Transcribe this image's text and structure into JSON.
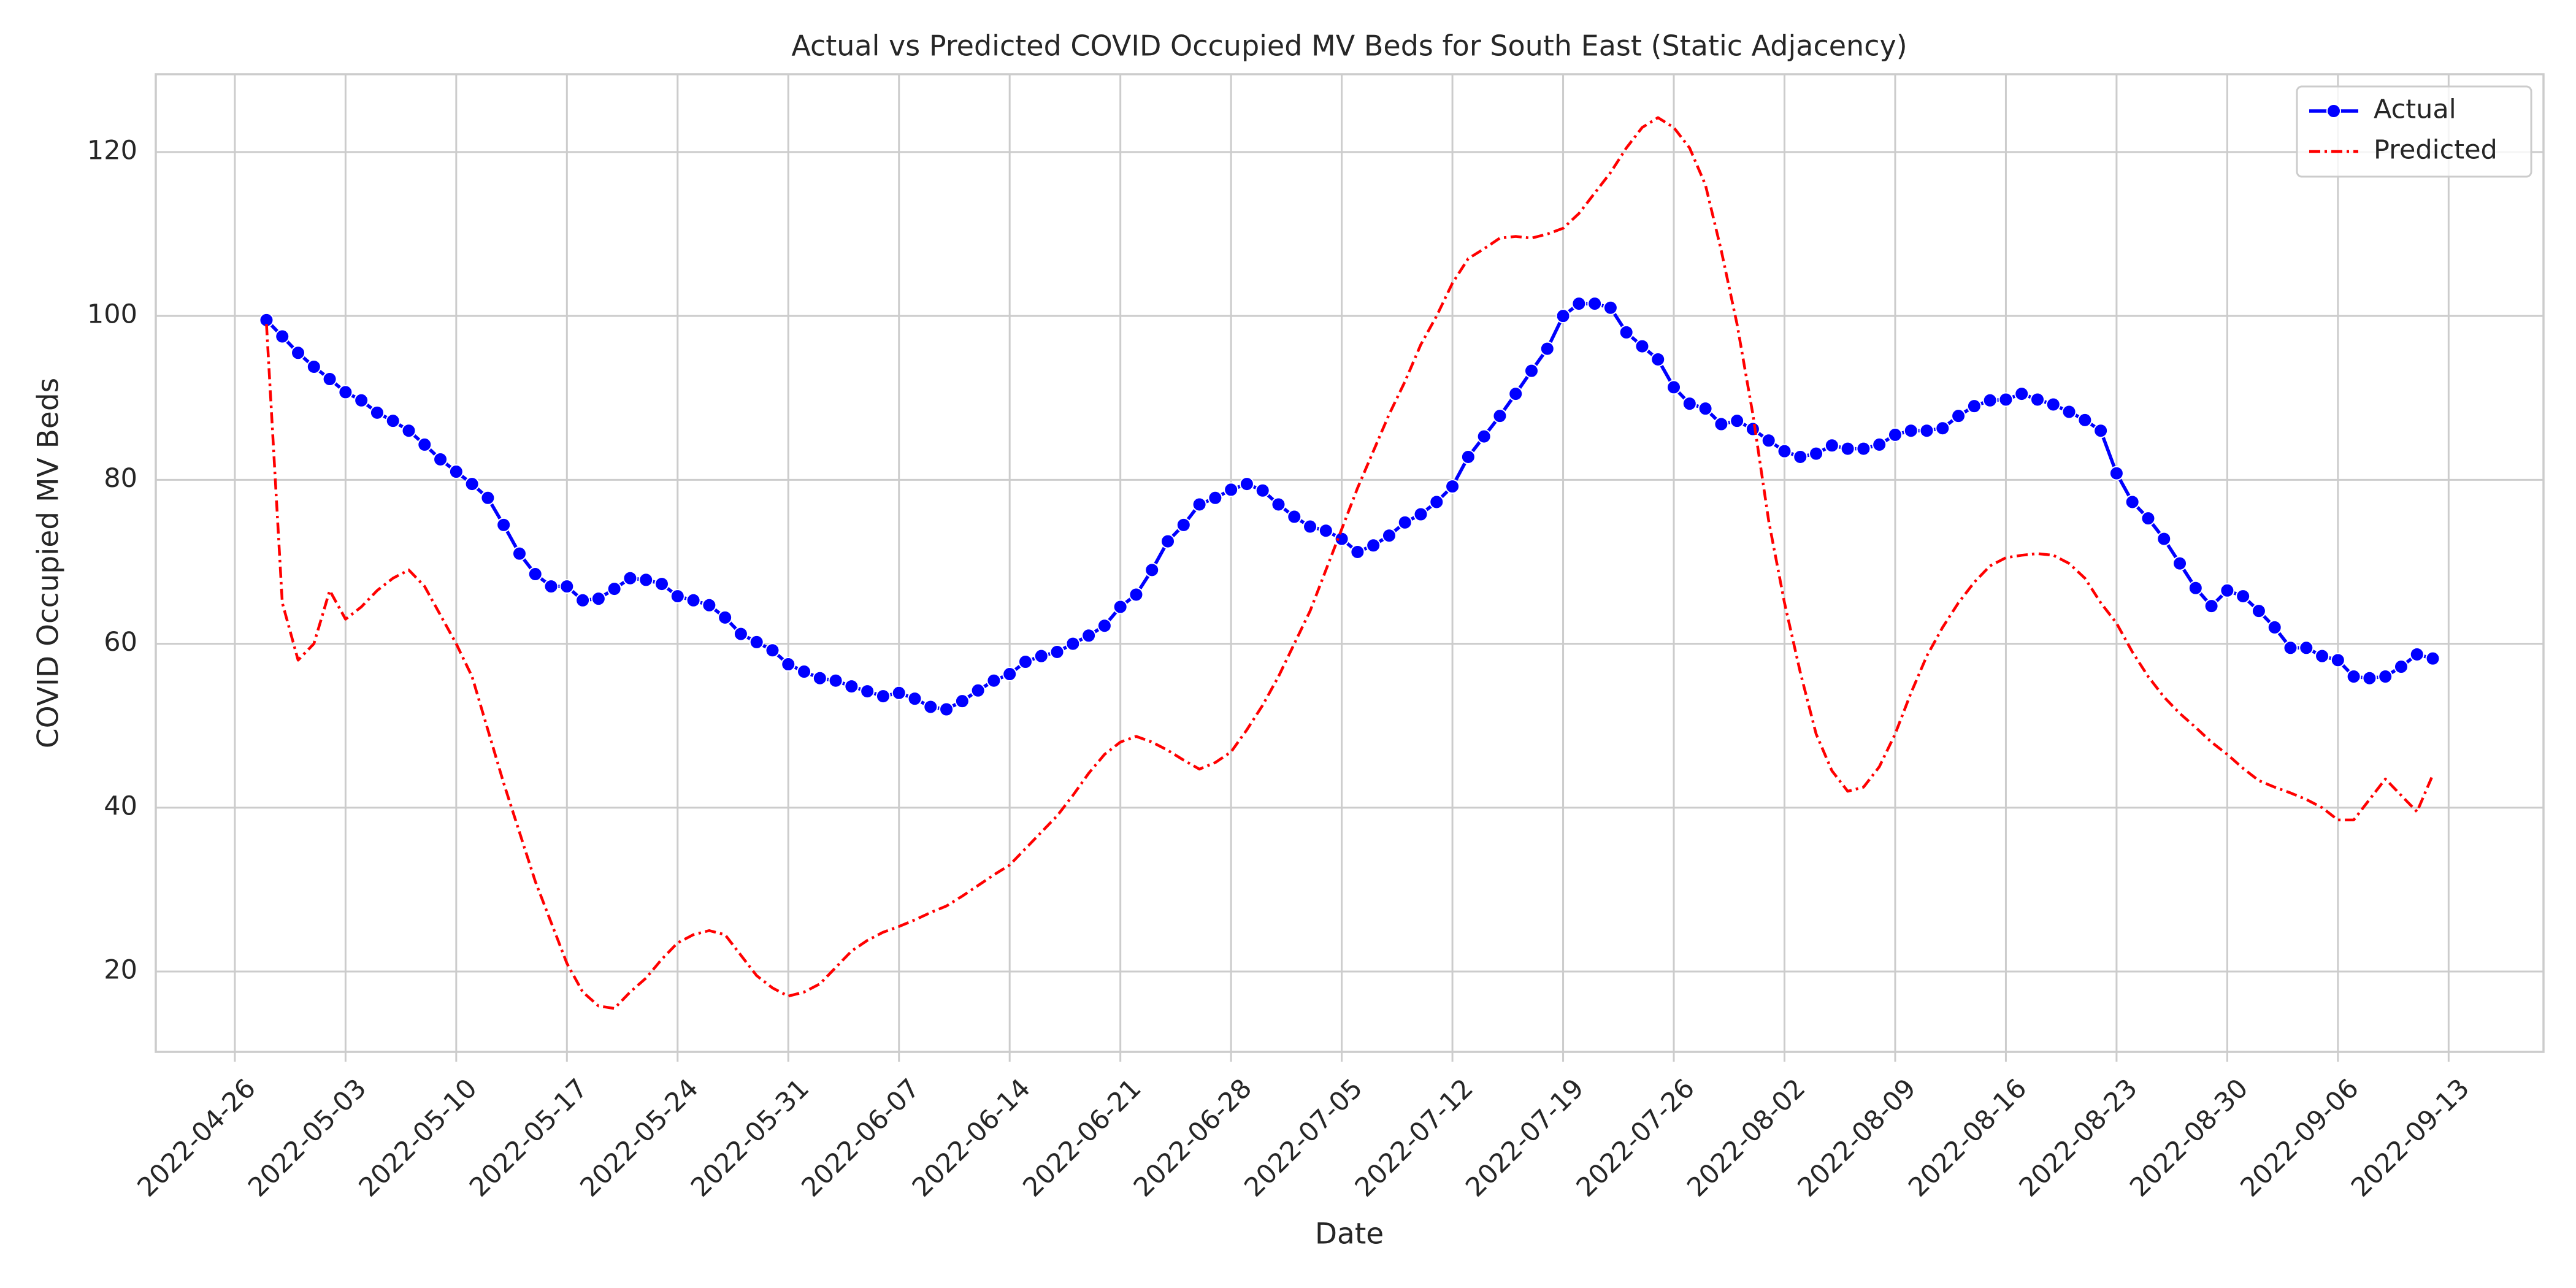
{
  "chart_data": {
    "type": "line",
    "title": "Actual vs Predicted COVID Occupied MV Beds for South East (Static Adjacency)",
    "xlabel": "Date",
    "ylabel": "COVID Occupied MV Beds",
    "x": [
      "2022-04-28",
      "2022-04-29",
      "2022-04-30",
      "2022-05-01",
      "2022-05-02",
      "2022-05-03",
      "2022-05-04",
      "2022-05-05",
      "2022-05-06",
      "2022-05-07",
      "2022-05-08",
      "2022-05-09",
      "2022-05-10",
      "2022-05-11",
      "2022-05-12",
      "2022-05-13",
      "2022-05-14",
      "2022-05-15",
      "2022-05-16",
      "2022-05-17",
      "2022-05-18",
      "2022-05-19",
      "2022-05-20",
      "2022-05-21",
      "2022-05-22",
      "2022-05-23",
      "2022-05-24",
      "2022-05-25",
      "2022-05-26",
      "2022-05-27",
      "2022-05-28",
      "2022-05-29",
      "2022-05-30",
      "2022-05-31",
      "2022-06-01",
      "2022-06-02",
      "2022-06-03",
      "2022-06-04",
      "2022-06-05",
      "2022-06-06",
      "2022-06-07",
      "2022-06-08",
      "2022-06-09",
      "2022-06-10",
      "2022-06-11",
      "2022-06-12",
      "2022-06-13",
      "2022-06-14",
      "2022-06-15",
      "2022-06-16",
      "2022-06-17",
      "2022-06-18",
      "2022-06-19",
      "2022-06-20",
      "2022-06-21",
      "2022-06-22",
      "2022-06-23",
      "2022-06-24",
      "2022-06-25",
      "2022-06-26",
      "2022-06-27",
      "2022-06-28",
      "2022-06-29",
      "2022-06-30",
      "2022-07-01",
      "2022-07-02",
      "2022-07-03",
      "2022-07-04",
      "2022-07-05",
      "2022-07-06",
      "2022-07-07",
      "2022-07-08",
      "2022-07-09",
      "2022-07-10",
      "2022-07-11",
      "2022-07-12",
      "2022-07-13",
      "2022-07-14",
      "2022-07-15",
      "2022-07-16",
      "2022-07-17",
      "2022-07-18",
      "2022-07-19",
      "2022-07-20",
      "2022-07-21",
      "2022-07-22",
      "2022-07-23",
      "2022-07-24",
      "2022-07-25",
      "2022-07-26",
      "2022-07-27",
      "2022-07-28",
      "2022-07-29",
      "2022-07-30",
      "2022-07-31",
      "2022-08-01",
      "2022-08-02",
      "2022-08-03",
      "2022-08-04",
      "2022-08-05",
      "2022-08-06",
      "2022-08-07",
      "2022-08-08",
      "2022-08-09",
      "2022-08-10",
      "2022-08-11",
      "2022-08-12",
      "2022-08-13",
      "2022-08-14",
      "2022-08-15",
      "2022-08-16",
      "2022-08-17",
      "2022-08-18",
      "2022-08-19",
      "2022-08-20",
      "2022-08-21",
      "2022-08-22",
      "2022-08-23",
      "2022-08-24",
      "2022-08-25",
      "2022-08-26",
      "2022-08-27",
      "2022-08-28",
      "2022-08-29",
      "2022-08-30",
      "2022-08-31",
      "2022-09-01",
      "2022-09-02",
      "2022-09-03",
      "2022-09-04",
      "2022-09-05",
      "2022-09-06",
      "2022-09-07",
      "2022-09-08",
      "2022-09-09",
      "2022-09-10",
      "2022-09-11",
      "2022-09-12"
    ],
    "series": [
      {
        "name": "Actual",
        "color": "#0000ff",
        "marker": "circle",
        "linestyle": "solid",
        "values": [
          99.5,
          97.5,
          95.5,
          93.8,
          92.3,
          90.7,
          89.7,
          88.2,
          87.2,
          86,
          84.3,
          82.5,
          81,
          79.5,
          77.8,
          74.5,
          71,
          68.5,
          67,
          67,
          65.3,
          65.5,
          66.7,
          68,
          67.8,
          67.3,
          65.8,
          65.3,
          64.7,
          63.2,
          61.2,
          60.2,
          59.2,
          57.5,
          56.6,
          55.8,
          55.5,
          54.8,
          54.2,
          53.6,
          54,
          53.3,
          52.3,
          52,
          53,
          54.3,
          55.5,
          56.3,
          57.8,
          58.5,
          59,
          60,
          61,
          62.2,
          64.5,
          66,
          69,
          72.5,
          74.5,
          77,
          77.8,
          78.8,
          79.5,
          78.7,
          77,
          75.5,
          74.3,
          73.8,
          72.8,
          71.2,
          72,
          73.2,
          74.8,
          75.8,
          77.3,
          79.2,
          82.8,
          85.3,
          87.8,
          90.5,
          93.3,
          96,
          100,
          101.5,
          101.5,
          101,
          98,
          96.3,
          94.7,
          91.3,
          89.3,
          88.7,
          86.8,
          87.2,
          86.2,
          84.8,
          83.5,
          82.8,
          83.2,
          84.2,
          83.8,
          83.8,
          84.3,
          85.5,
          86,
          86,
          86.3,
          87.8,
          89,
          89.7,
          89.8,
          90.5,
          89.8,
          89.2,
          88.3,
          87.3,
          86,
          80.8,
          77.3,
          75.3,
          72.8,
          69.8,
          66.8,
          64.6,
          66.5,
          65.8,
          64,
          62,
          59.5,
          59.5,
          58.5,
          58,
          56,
          55.8,
          56,
          57.2,
          58.7,
          58.2
        ]
      },
      {
        "name": "Predicted",
        "color": "#ff0000",
        "marker": "none",
        "linestyle": "dashdot",
        "values": [
          99,
          65,
          58,
          60,
          66.5,
          63,
          64.5,
          66.5,
          68,
          69,
          67,
          63.5,
          60,
          56,
          49.5,
          43,
          37,
          31,
          26,
          21,
          17.5,
          15.8,
          15.5,
          17.5,
          19.2,
          21.5,
          23.5,
          24.5,
          25,
          24.5,
          22,
          19.5,
          18,
          17,
          17.5,
          18.5,
          20.5,
          22.5,
          23.8,
          24.8,
          25.5,
          26.3,
          27.2,
          28,
          29.2,
          30.5,
          31.8,
          33,
          35,
          37,
          39,
          41.5,
          44.2,
          46.5,
          48,
          48.7,
          48,
          47,
          45.8,
          44.7,
          45.5,
          46.8,
          49.5,
          52.5,
          56,
          60,
          64,
          69,
          74,
          79,
          83.5,
          88,
          92,
          96.5,
          100,
          104,
          107,
          108.2,
          109.5,
          109.7,
          109.5,
          110,
          110.7,
          112.5,
          115,
          117.5,
          120.5,
          123,
          124.2,
          123,
          120.5,
          116,
          108,
          99,
          88,
          75,
          65,
          56.5,
          49,
          44.5,
          42,
          42.5,
          45,
          49,
          54,
          58.5,
          62,
          65,
          67.5,
          69.5,
          70.5,
          70.8,
          71,
          70.8,
          69.8,
          68,
          65,
          62.5,
          59,
          56,
          53.5,
          51.5,
          49.8,
          48,
          46.5,
          44.8,
          43.3,
          42.5,
          41.8,
          41,
          40,
          38.5,
          38.5,
          41,
          43.5,
          41.5,
          39.5,
          44
        ]
      }
    ],
    "xlim": [
      "2022-04-21",
      "2022-09-19"
    ],
    "xticks": [
      "2022-04-26",
      "2022-05-03",
      "2022-05-10",
      "2022-05-17",
      "2022-05-24",
      "2022-05-31",
      "2022-06-07",
      "2022-06-14",
      "2022-06-21",
      "2022-06-28",
      "2022-07-05",
      "2022-07-12",
      "2022-07-19",
      "2022-07-26",
      "2022-08-02",
      "2022-08-09",
      "2022-08-16",
      "2022-08-23",
      "2022-08-30",
      "2022-09-06",
      "2022-09-13"
    ],
    "ylim": [
      10.2,
      129.5
    ],
    "yticks": [
      20,
      40,
      60,
      80,
      100,
      120
    ],
    "grid": true,
    "legend": "upper right"
  }
}
